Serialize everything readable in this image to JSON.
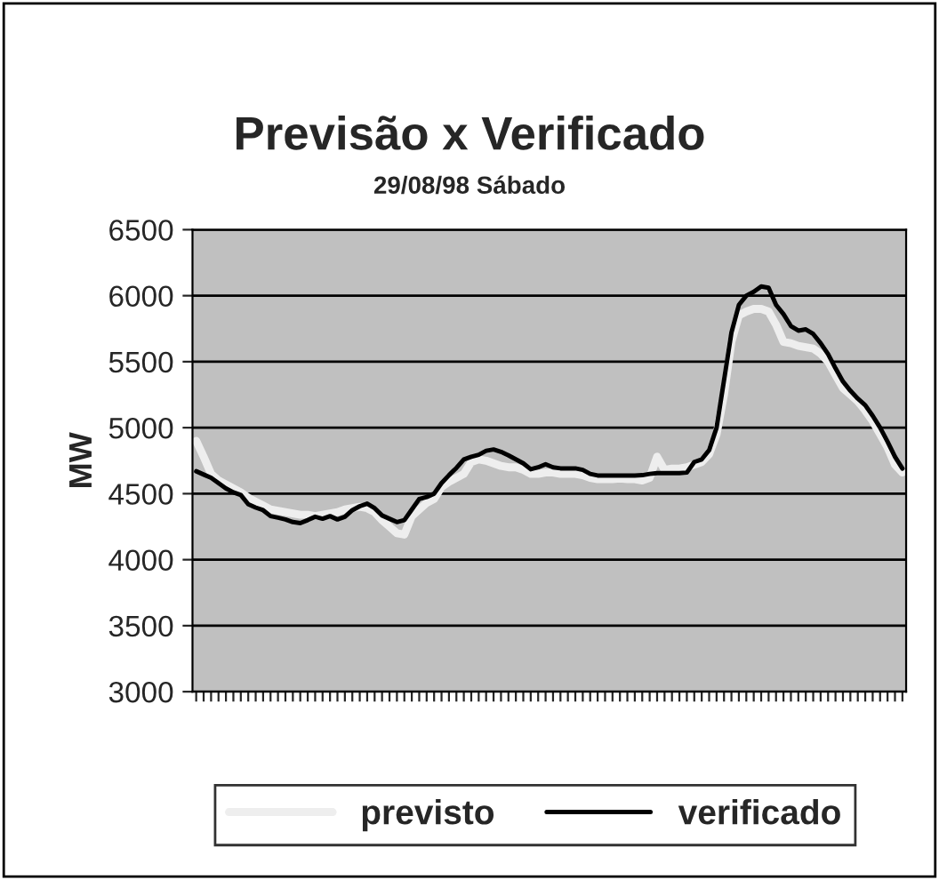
{
  "chart_data": {
    "type": "line",
    "title": "Previsão x Verificado",
    "subtitle": "29/08/98 Sábado",
    "ylabel": "MW",
    "categories": [
      null,
      null,
      null,
      null,
      null,
      null,
      null,
      null,
      null,
      null,
      null,
      null,
      null,
      null,
      null,
      null,
      null,
      null,
      null,
      null,
      null,
      null,
      null,
      null,
      null,
      null,
      null,
      null,
      null,
      null,
      null,
      null,
      null,
      null,
      null,
      null,
      null,
      null,
      null,
      null,
      null,
      null,
      null,
      null,
      null,
      null,
      null,
      null,
      null,
      null,
      null,
      null,
      null,
      null,
      null,
      null,
      null,
      null,
      null,
      null,
      null,
      null,
      null,
      null,
      null,
      null,
      null,
      null,
      null,
      null,
      null,
      null,
      null,
      null,
      null,
      null,
      null,
      null,
      null,
      null,
      null,
      null,
      null,
      null,
      null,
      null,
      null,
      null,
      null,
      null,
      null,
      null,
      null,
      null,
      null,
      null
    ],
    "series": [
      {
        "name": "previsto",
        "color": "#eeeeee",
        "values": [
          4900,
          4780,
          4650,
          4600,
          4570,
          4540,
          4510,
          4470,
          4440,
          4410,
          4380,
          4370,
          4360,
          4350,
          4340,
          4340,
          4330,
          4340,
          4350,
          4360,
          4380,
          4390,
          4400,
          4390,
          4360,
          4300,
          4250,
          4200,
          4190,
          4330,
          4380,
          4430,
          4460,
          4550,
          4590,
          4620,
          4650,
          4740,
          4760,
          4750,
          4730,
          4710,
          4700,
          4700,
          4680,
          4650,
          4650,
          4660,
          4660,
          4650,
          4650,
          4650,
          4640,
          4620,
          4610,
          4610,
          4610,
          4615,
          4610,
          4610,
          4600,
          4620,
          4780,
          4680,
          4690,
          4690,
          4700,
          4720,
          4740,
          4800,
          4950,
          5250,
          5650,
          5850,
          5880,
          5900,
          5900,
          5880,
          5780,
          5650,
          5640,
          5620,
          5610,
          5600,
          5560,
          5500,
          5400,
          5300,
          5250,
          5200,
          5130,
          5050,
          4950,
          4850,
          4720,
          4660
        ]
      },
      {
        "name": "verificado",
        "color": "#000000",
        "values": [
          4670,
          4645,
          4620,
          4580,
          4540,
          4510,
          4490,
          4420,
          4395,
          4375,
          4330,
          4318,
          4305,
          4285,
          4277,
          4300,
          4325,
          4310,
          4330,
          4305,
          4325,
          4375,
          4405,
          4425,
          4390,
          4335,
          4310,
          4285,
          4300,
          4380,
          4460,
          4475,
          4500,
          4580,
          4640,
          4695,
          4760,
          4780,
          4795,
          4825,
          4835,
          4817,
          4790,
          4760,
          4730,
          4685,
          4700,
          4723,
          4700,
          4692,
          4692,
          4692,
          4680,
          4650,
          4638,
          4638,
          4638,
          4638,
          4638,
          4638,
          4640,
          4650,
          4656,
          4656,
          4656,
          4656,
          4660,
          4740,
          4760,
          4830,
          5000,
          5358,
          5720,
          5930,
          6000,
          6030,
          6070,
          6060,
          5930,
          5860,
          5770,
          5735,
          5745,
          5710,
          5640,
          5557,
          5450,
          5350,
          5280,
          5220,
          5170,
          5090,
          5000,
          4894,
          4780,
          4690
        ]
      }
    ],
    "ylim": [
      3000,
      6500
    ],
    "yticks": [
      3000,
      3500,
      4000,
      4500,
      5000,
      5500,
      6000,
      6500
    ],
    "grid": "y",
    "legend": "bottom",
    "marker": "none",
    "line_style": "solid"
  }
}
